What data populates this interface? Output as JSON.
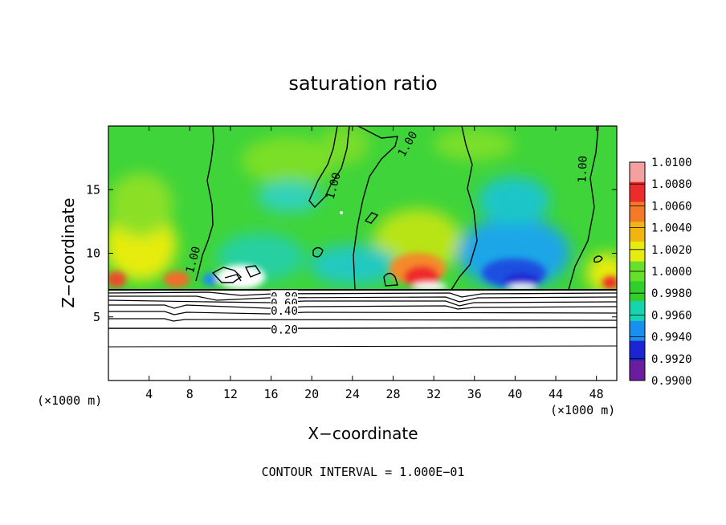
{
  "chart_data": {
    "type": "heatmap",
    "title": "saturation ratio",
    "xlabel": "X−coordinate",
    "ylabel": "Z−coordinate",
    "x_unit": "(×1000 m)",
    "z_unit": "(×1000 m)",
    "xlim": [
      0,
      50
    ],
    "ylim": [
      0,
      20
    ],
    "x_ticks": [
      4,
      8,
      12,
      16,
      20,
      24,
      28,
      32,
      36,
      40,
      44,
      48
    ],
    "y_ticks": [
      5,
      10,
      15
    ],
    "footer": "CONTOUR INTERVAL = 1.000E−01",
    "colorbar": {
      "levels": [
        "1.0100",
        "1.0080",
        "1.0060",
        "1.0040",
        "1.0020",
        "1.0000",
        "0.9980",
        "0.9960",
        "0.9940",
        "0.9920",
        "0.9900"
      ],
      "colors": [
        "#f5a0a0",
        "#ee2b2b",
        "#f47a2a",
        "#f2b510",
        "#e6ec10",
        "#66e02a",
        "#30cf2a",
        "#16d4b0",
        "#1a8ff0",
        "#1c25d2",
        "#6a1e9e"
      ]
    },
    "surface_z": 7,
    "contour_labels": [
      {
        "text": "1.00",
        "x": 8.3,
        "z": 9.5
      },
      {
        "text": "1.00",
        "x": 22.1,
        "z": 15.3
      },
      {
        "text": "1.00",
        "x": 29.4,
        "z": 18.6
      },
      {
        "text": "1.00",
        "x": 46.6,
        "z": 16.6
      },
      {
        "text": "0.80",
        "x": 17.3,
        "z": 6.6
      },
      {
        "text": "0.60",
        "x": 17.3,
        "z": 6.1
      },
      {
        "text": "0.40",
        "x": 17.3,
        "z": 5.5
      },
      {
        "text": "0.20",
        "x": 17.3,
        "z": 4.0
      }
    ]
  }
}
